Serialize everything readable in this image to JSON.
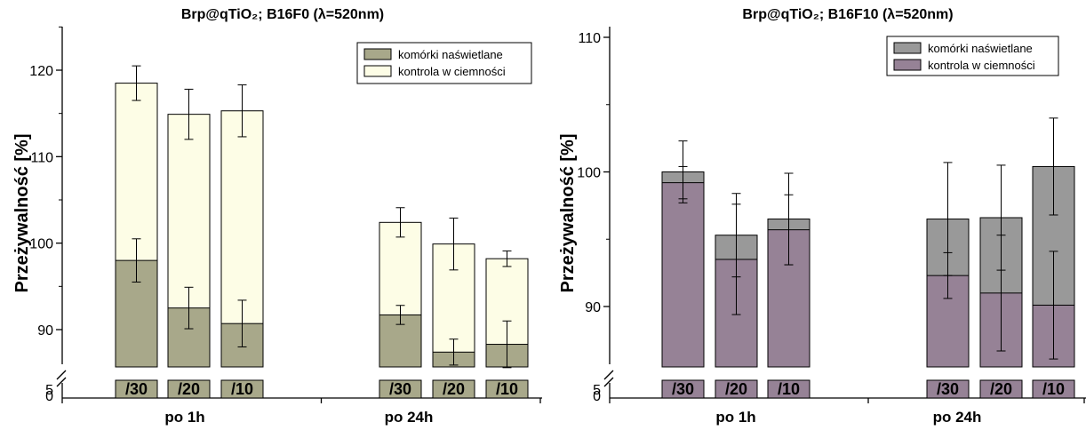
{
  "chart_data": [
    {
      "type": "bar",
      "title": "Brp@qTiO₂; B16F0 (λ=520nm)",
      "ylabel": "Przeżywalność [%]",
      "yaxis_break": true,
      "ylim": [
        85,
        125
      ],
      "yticks": [
        90,
        100,
        110,
        120
      ],
      "ylow_ticks": [
        0,
        5
      ],
      "groups": [
        "po 1h",
        "po 24h"
      ],
      "categories": [
        "/30",
        "/20",
        "/10",
        "/30",
        "/20",
        "/10"
      ],
      "legend_position": "top-right",
      "colors": {
        "illuminated": "#a8a88a",
        "dark": "#fdfde6"
      },
      "series": [
        {
          "name": "komórki naświetlane",
          "color": "#a8a88a",
          "values": [
            98.0,
            92.5,
            90.7,
            91.7,
            87.4,
            88.3
          ],
          "errors": [
            2.5,
            2.4,
            2.7,
            1.1,
            1.5,
            2.7
          ]
        },
        {
          "name": "kontrola w ciemności",
          "color": "#fdfde6",
          "values": [
            118.5,
            114.9,
            115.3,
            102.4,
            99.9,
            98.2
          ],
          "errors": [
            2.0,
            2.9,
            3.0,
            1.7,
            3.0,
            0.9
          ]
        }
      ]
    },
    {
      "type": "bar",
      "title": "Brp@qTiO₂; B16F10 (λ=520nm)",
      "ylabel": "Przeżywalność [%]",
      "yaxis_break": true,
      "ylim": [
        85,
        110
      ],
      "yticks": [
        90,
        100,
        110
      ],
      "ylow_ticks": [
        0,
        5
      ],
      "groups": [
        "po 1h",
        "po 24h"
      ],
      "categories": [
        "/30",
        "/20",
        "/10",
        "/30",
        "/20",
        "/10"
      ],
      "legend_position": "top-right",
      "colors": {
        "illuminated": "#999999",
        "dark": "#968296"
      },
      "series": [
        {
          "name": "komórki naświetlane",
          "color": "#999999",
          "values": [
            100.0,
            95.3,
            96.5,
            96.5,
            96.6,
            100.4
          ],
          "errors": [
            2.3,
            3.1,
            3.4,
            4.2,
            3.9,
            3.6
          ]
        },
        {
          "name": "kontrola w ciemności",
          "color": "#968296",
          "values": [
            99.2,
            93.5,
            95.7,
            92.3,
            91.0,
            90.1
          ],
          "errors": [
            1.2,
            4.1,
            2.6,
            1.7,
            4.3,
            4.0
          ]
        }
      ]
    }
  ]
}
